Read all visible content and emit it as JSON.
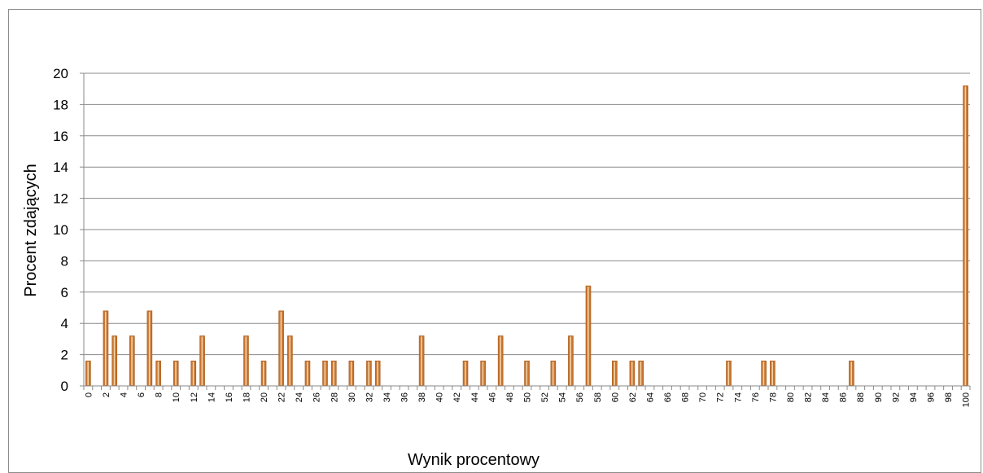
{
  "chart_data": {
    "type": "bar",
    "title": "",
    "xlabel": "Wynik procentowy",
    "ylabel": "Procent zdających",
    "ylim": [
      0,
      20
    ],
    "yticks": [
      0,
      2,
      4,
      6,
      8,
      10,
      12,
      14,
      16,
      18,
      20
    ],
    "grid": true,
    "legend": "none",
    "bar_color": "#c8742e",
    "categories": [
      0,
      1,
      2,
      3,
      4,
      5,
      6,
      7,
      8,
      9,
      10,
      11,
      12,
      13,
      14,
      15,
      16,
      17,
      18,
      19,
      20,
      21,
      22,
      23,
      24,
      25,
      26,
      27,
      28,
      29,
      30,
      31,
      32,
      33,
      34,
      35,
      36,
      37,
      38,
      39,
      40,
      41,
      42,
      43,
      44,
      45,
      46,
      47,
      48,
      49,
      50,
      51,
      52,
      53,
      54,
      55,
      56,
      57,
      58,
      59,
      60,
      61,
      62,
      63,
      64,
      65,
      66,
      67,
      68,
      69,
      70,
      71,
      72,
      73,
      74,
      75,
      76,
      77,
      78,
      79,
      80,
      81,
      82,
      83,
      84,
      85,
      86,
      87,
      88,
      89,
      90,
      91,
      92,
      93,
      94,
      95,
      96,
      97,
      98,
      99,
      100
    ],
    "values": [
      1.6,
      0,
      4.8,
      3.2,
      0,
      3.2,
      0,
      4.8,
      1.6,
      0,
      1.6,
      0,
      1.6,
      3.2,
      0,
      0,
      0,
      0,
      3.2,
      0,
      1.6,
      0,
      4.8,
      3.2,
      0,
      1.6,
      0,
      1.6,
      1.6,
      0,
      1.6,
      0,
      1.6,
      1.6,
      0,
      0,
      0,
      0,
      3.2,
      0,
      0,
      0,
      0,
      1.6,
      0,
      1.6,
      0,
      3.2,
      0,
      0,
      1.6,
      0,
      0,
      1.6,
      0,
      3.2,
      0,
      6.4,
      0,
      0,
      1.6,
      0,
      1.6,
      1.6,
      0,
      0,
      0,
      0,
      0,
      0,
      0,
      0,
      0,
      1.6,
      0,
      0,
      0,
      1.6,
      1.6,
      0,
      0,
      0,
      0,
      0,
      0,
      0,
      0,
      1.6,
      0,
      0,
      0,
      0,
      0,
      0,
      0,
      0,
      0,
      0,
      0,
      0,
      19.2
    ],
    "xtick_labels": [
      "0",
      "2",
      "4",
      "6",
      "8",
      "10",
      "12",
      "14",
      "16",
      "18",
      "20",
      "22",
      "24",
      "26",
      "28",
      "30",
      "32",
      "34",
      "36",
      "38",
      "40",
      "42",
      "44",
      "46",
      "48",
      "50",
      "52",
      "54",
      "56",
      "58",
      "60",
      "62",
      "64",
      "66",
      "68",
      "70",
      "72",
      "74",
      "76",
      "78",
      "80",
      "82",
      "84",
      "86",
      "88",
      "90",
      "92",
      "94",
      "96",
      "98",
      "100"
    ]
  }
}
